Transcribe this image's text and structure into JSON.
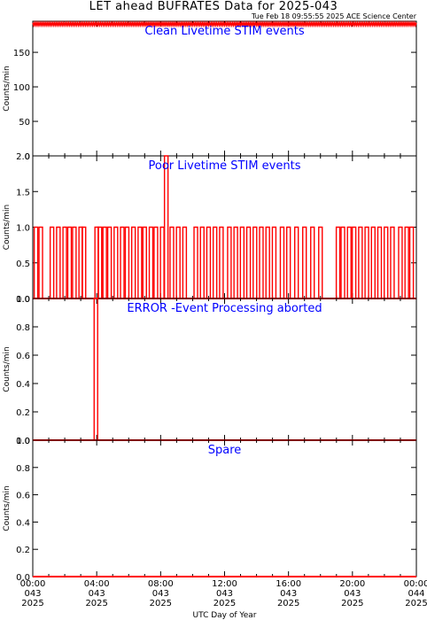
{
  "header": {
    "title": "LET ahead BUFRATES Data for 2025-043",
    "timestamp": "Tue Feb 18 09:55:55 2025 ACE Science Center"
  },
  "colors": {
    "series": "#ff0000",
    "panel_title": "#0000ff",
    "axes": "#000000"
  },
  "chart_data": [
    {
      "type": "line",
      "title": "Clean Livetime STIM events",
      "ylabel": "Counts/min",
      "ylim": [
        0,
        195
      ],
      "yticks": [
        0,
        50,
        100,
        150
      ],
      "series": [
        {
          "pattern": "dense-band",
          "values": [
            189,
            193
          ]
        }
      ]
    },
    {
      "type": "line",
      "title": "Poor Livetime STIM events",
      "ylabel": "Counts/min",
      "ylim": [
        0,
        2
      ],
      "yticks": [
        0.0,
        0.5,
        1.0,
        1.5,
        2.0
      ],
      "spikes": [
        {
          "x": 0.2,
          "y": 1
        },
        {
          "x": 0.5,
          "y": 1
        },
        {
          "x": 1.2,
          "y": 1
        },
        {
          "x": 1.6,
          "y": 1
        },
        {
          "x": 2.0,
          "y": 1
        },
        {
          "x": 2.3,
          "y": 1
        },
        {
          "x": 2.6,
          "y": 1
        },
        {
          "x": 3.0,
          "y": 1
        },
        {
          "x": 3.2,
          "y": 1
        },
        {
          "x": 4.0,
          "y": 1
        },
        {
          "x": 4.2,
          "y": 1
        },
        {
          "x": 4.5,
          "y": 1
        },
        {
          "x": 4.8,
          "y": 1
        },
        {
          "x": 5.2,
          "y": 1
        },
        {
          "x": 5.6,
          "y": 1
        },
        {
          "x": 5.9,
          "y": 1
        },
        {
          "x": 6.3,
          "y": 1
        },
        {
          "x": 6.7,
          "y": 1
        },
        {
          "x": 7.0,
          "y": 1
        },
        {
          "x": 7.4,
          "y": 1
        },
        {
          "x": 7.7,
          "y": 1
        },
        {
          "x": 8.1,
          "y": 1
        },
        {
          "x": 8.35,
          "y": 2
        },
        {
          "x": 8.7,
          "y": 1
        },
        {
          "x": 9.1,
          "y": 1
        },
        {
          "x": 9.5,
          "y": 1
        },
        {
          "x": 10.2,
          "y": 1
        },
        {
          "x": 10.6,
          "y": 1
        },
        {
          "x": 11.0,
          "y": 1
        },
        {
          "x": 11.4,
          "y": 1
        },
        {
          "x": 11.8,
          "y": 1
        },
        {
          "x": 12.3,
          "y": 1
        },
        {
          "x": 12.7,
          "y": 1
        },
        {
          "x": 13.1,
          "y": 1
        },
        {
          "x": 13.5,
          "y": 1
        },
        {
          "x": 13.9,
          "y": 1
        },
        {
          "x": 14.3,
          "y": 1
        },
        {
          "x": 14.7,
          "y": 1
        },
        {
          "x": 15.1,
          "y": 1
        },
        {
          "x": 15.6,
          "y": 1
        },
        {
          "x": 16.0,
          "y": 1
        },
        {
          "x": 16.5,
          "y": 1
        },
        {
          "x": 17.0,
          "y": 1
        },
        {
          "x": 17.5,
          "y": 1
        },
        {
          "x": 18.0,
          "y": 1
        },
        {
          "x": 19.1,
          "y": 1
        },
        {
          "x": 19.4,
          "y": 1
        },
        {
          "x": 19.8,
          "y": 1
        },
        {
          "x": 20.1,
          "y": 1
        },
        {
          "x": 20.5,
          "y": 1
        },
        {
          "x": 20.9,
          "y": 1
        },
        {
          "x": 21.3,
          "y": 1
        },
        {
          "x": 21.7,
          "y": 1
        },
        {
          "x": 22.1,
          "y": 1
        },
        {
          "x": 22.5,
          "y": 1
        },
        {
          "x": 23.0,
          "y": 1
        },
        {
          "x": 23.4,
          "y": 1
        },
        {
          "x": 23.7,
          "y": 1
        }
      ]
    },
    {
      "type": "line",
      "title": "ERROR -Event Processing aborted",
      "ylabel": "Counts/min",
      "ylim": [
        0,
        1
      ],
      "yticks": [
        0.0,
        0.2,
        0.4,
        0.6,
        0.8,
        1.0
      ],
      "spikes": [
        {
          "x": 3.95,
          "y": 1
        }
      ]
    },
    {
      "type": "line",
      "title": "Spare",
      "ylabel": "Counts/min",
      "ylim": [
        0,
        1
      ],
      "yticks": [
        0.0,
        0.2,
        0.4,
        0.6,
        0.8,
        1.0
      ],
      "spikes": []
    }
  ],
  "x_axis": {
    "label": "UTC Day of Year",
    "range_hours": [
      0,
      24
    ],
    "ticks": [
      {
        "hour": 0,
        "time": "00:00",
        "doy": "043",
        "year": "2025"
      },
      {
        "hour": 4,
        "time": "04:00",
        "doy": "043",
        "year": "2025"
      },
      {
        "hour": 8,
        "time": "08:00",
        "doy": "043",
        "year": "2025"
      },
      {
        "hour": 12,
        "time": "12:00",
        "doy": "043",
        "year": "2025"
      },
      {
        "hour": 16,
        "time": "16:00",
        "doy": "043",
        "year": "2025"
      },
      {
        "hour": 20,
        "time": "20:00",
        "doy": "043",
        "year": "2025"
      },
      {
        "hour": 24,
        "time": "00:00",
        "doy": "044",
        "year": "2025"
      }
    ]
  }
}
